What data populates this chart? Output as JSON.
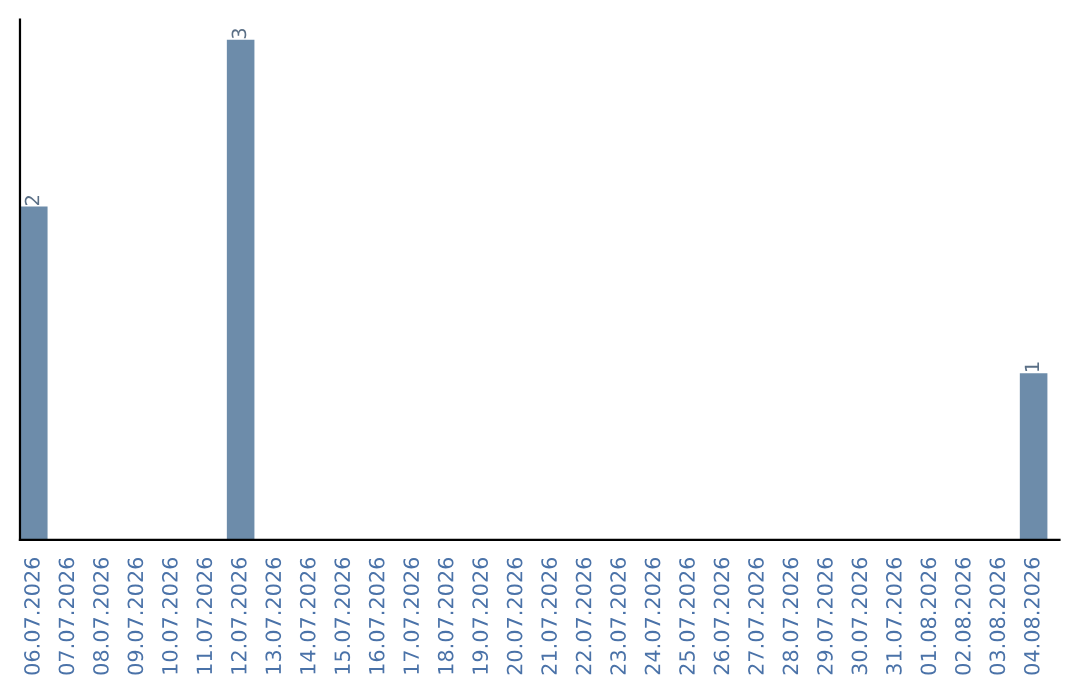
{
  "chart_data": {
    "type": "bar",
    "categories": [
      "06.07.2026",
      "07.07.2026",
      "08.07.2026",
      "09.07.2026",
      "10.07.2026",
      "11.07.2026",
      "12.07.2026",
      "13.07.2026",
      "14.07.2026",
      "15.07.2026",
      "16.07.2026",
      "17.07.2026",
      "18.07.2026",
      "19.07.2026",
      "20.07.2026",
      "21.07.2026",
      "22.07.2026",
      "23.07.2026",
      "24.07.2026",
      "25.07.2026",
      "26.07.2026",
      "27.07.2026",
      "28.07.2026",
      "29.07.2026",
      "30.07.2026",
      "31.07.2026",
      "01.08.2026",
      "02.08.2026",
      "03.08.2026",
      "04.08.2026"
    ],
    "values": [
      2,
      0,
      0,
      0,
      0,
      0,
      3,
      0,
      0,
      0,
      0,
      0,
      0,
      0,
      0,
      0,
      0,
      0,
      0,
      0,
      0,
      0,
      0,
      0,
      0,
      0,
      0,
      0,
      0,
      1
    ],
    "value_labels": [
      "2",
      null,
      null,
      null,
      null,
      null,
      "3",
      null,
      null,
      null,
      null,
      null,
      null,
      null,
      null,
      null,
      null,
      null,
      null,
      null,
      null,
      null,
      null,
      null,
      null,
      null,
      null,
      null,
      null,
      "1"
    ],
    "color": "#6d8caa",
    "tick_labels": "x",
    "grid": false,
    "legend": false
  }
}
